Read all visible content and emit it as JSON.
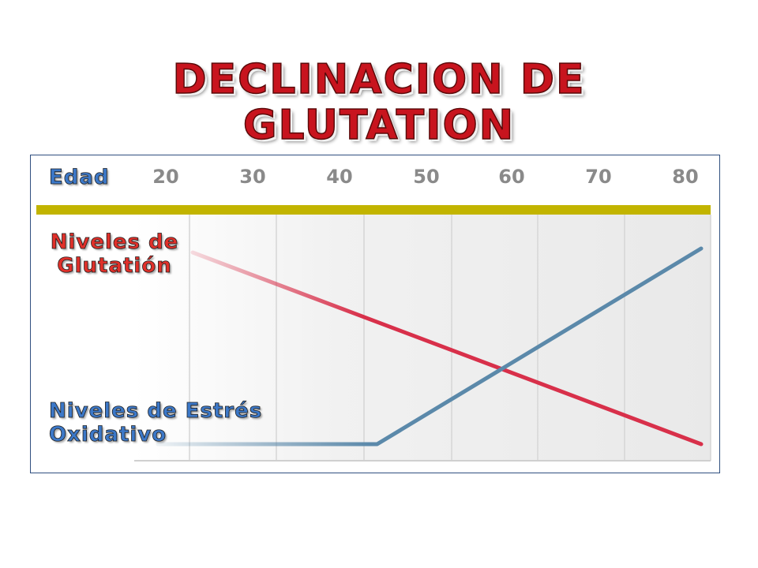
{
  "title": {
    "line1": "DECLINACION DE",
    "line2": "GLUTATION"
  },
  "labels": {
    "age": "Edad",
    "glutathione": "Niveles de\nGlutatión",
    "oxidative_stress": "Niveles de Estrés\nOxidativo"
  },
  "colors": {
    "title": "#c8141e",
    "age_bar": "#c2b400",
    "glutathione_line": "#d8304a",
    "oxidative_stress_line": "#5b89aa",
    "label_blue": "#3c78c8",
    "label_red": "#e0302a",
    "frame": "#2f4f7f"
  },
  "chart_data": {
    "type": "line",
    "x_ticks": [
      20,
      30,
      40,
      50,
      60,
      70,
      80
    ],
    "x_range": [
      20,
      80
    ],
    "y_range": [
      0,
      1
    ],
    "series": [
      {
        "key": "glutathione",
        "points": [
          [
            20,
            0.98
          ],
          [
            80,
            0.0
          ]
        ]
      },
      {
        "key": "oxidative_stress",
        "points": [
          [
            20,
            0.0
          ],
          [
            42,
            0.0
          ],
          [
            80,
            1.0
          ]
        ]
      }
    ],
    "grid": true
  }
}
